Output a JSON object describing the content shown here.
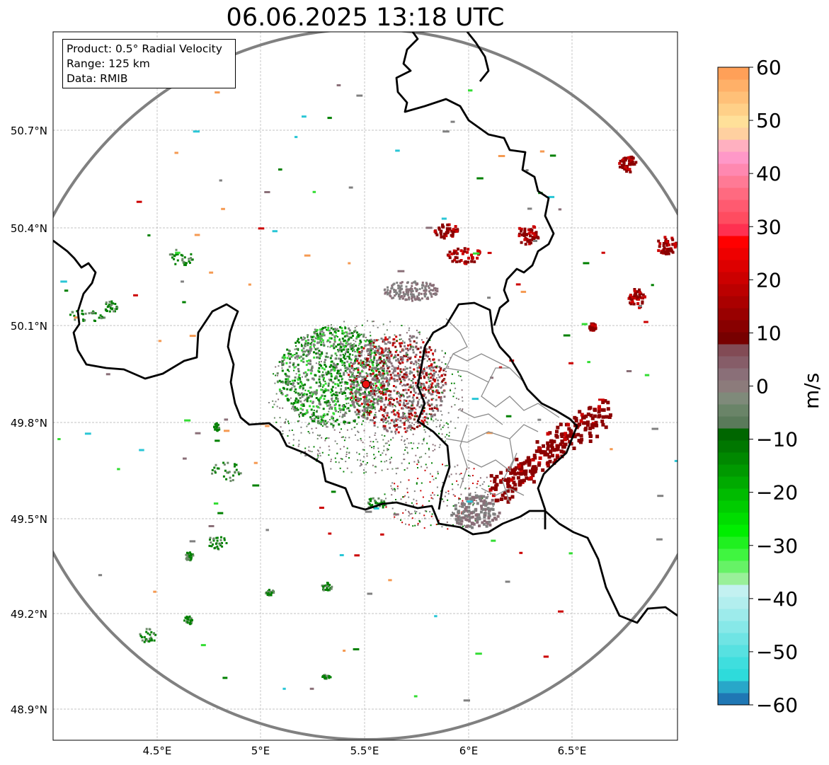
{
  "title": "06.06.2025 13:18 UTC",
  "info": {
    "product": "Product: 0.5° Radial Velocity",
    "range": "Range: 125 km",
    "data": "Data: RMIB"
  },
  "axes": {
    "x_ticks": [
      "4.5°E",
      "5°E",
      "5.5°E",
      "6°E",
      "6.5°E"
    ],
    "y_ticks": [
      "50.7°N",
      "50.4°N",
      "50.1°N",
      "49.8°N",
      "49.5°N",
      "49.2°N",
      "48.9°N"
    ]
  },
  "colorbar": {
    "unit": "m/s",
    "ticks": [
      "60",
      "50",
      "40",
      "30",
      "20",
      "10",
      "0",
      "−10",
      "−20",
      "−30",
      "−40",
      "−50",
      "−60"
    ],
    "range": [
      -60,
      60
    ],
    "colors": [
      "#1f77b4",
      "#28a7c9",
      "#2edbdb",
      "#3fdede",
      "#57e1e1",
      "#6fe4e4",
      "#87e8e8",
      "#9debeb",
      "#b2eeee",
      "#c3f1f1",
      "#99f099",
      "#66f266",
      "#40f540",
      "#20f020",
      "#00ee00",
      "#00dd00",
      "#00cc00",
      "#00bb00",
      "#00aa00",
      "#009900",
      "#008800",
      "#007700",
      "#006600",
      "#5a7a5a",
      "#6a8468",
      "#7f8a7a",
      "#8c7b7b",
      "#8a6f78",
      "#865d68",
      "#824b55",
      "#770000",
      "#880000",
      "#990000",
      "#aa0000",
      "#bb0000",
      "#cc0000",
      "#dd0000",
      "#ee0000",
      "#ff0000",
      "#ff3050",
      "#ff4c60",
      "#ff5a70",
      "#ff6a80",
      "#ff7a95",
      "#ff88b0",
      "#ff98c8",
      "#ffb0c0",
      "#ffd0a0",
      "#ffe099",
      "#ffd088",
      "#ffc078",
      "#ffb068",
      "#ffa058"
    ]
  },
  "radar_site": {
    "lon": 5.505,
    "lat": 49.914
  },
  "range_ring_color": "#808080",
  "echo_colors": {
    "dark_red": "#8b0000",
    "red": "#cc0000",
    "pink_gray": "#8a6f78",
    "gray": "#808080",
    "green_gray": "#6b8a68",
    "green": "#008000",
    "bright_green": "#33dd33",
    "cyan": "#29c6d6",
    "orange": "#f59a52"
  }
}
